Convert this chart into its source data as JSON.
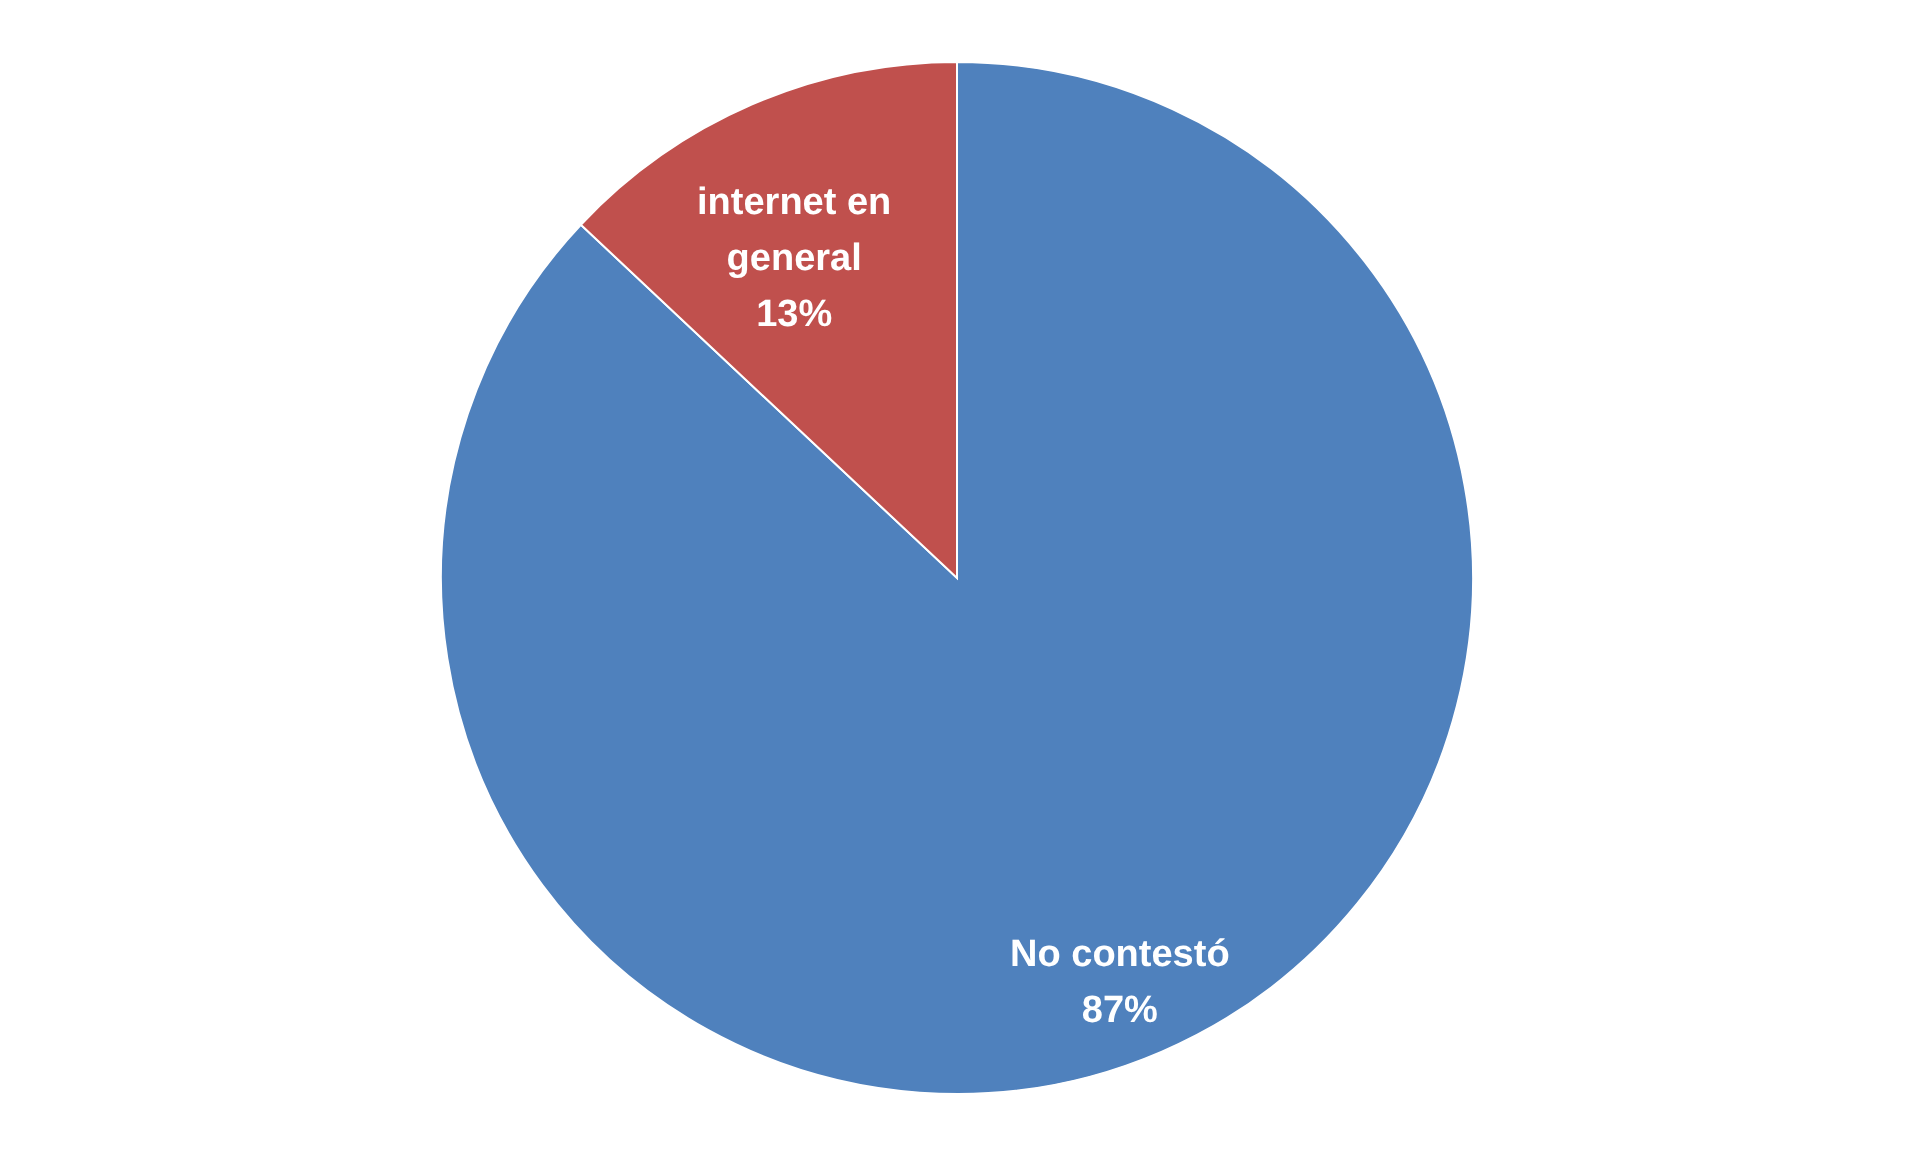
{
  "chart_data": {
    "type": "pie",
    "categories": [
      "No contestó",
      "internet en general"
    ],
    "values": [
      87,
      13
    ],
    "value_labels": [
      "87%",
      "13%"
    ],
    "colors": [
      "#4f81bd",
      "#c0504d"
    ],
    "data_labels": true,
    "legend": false
  }
}
